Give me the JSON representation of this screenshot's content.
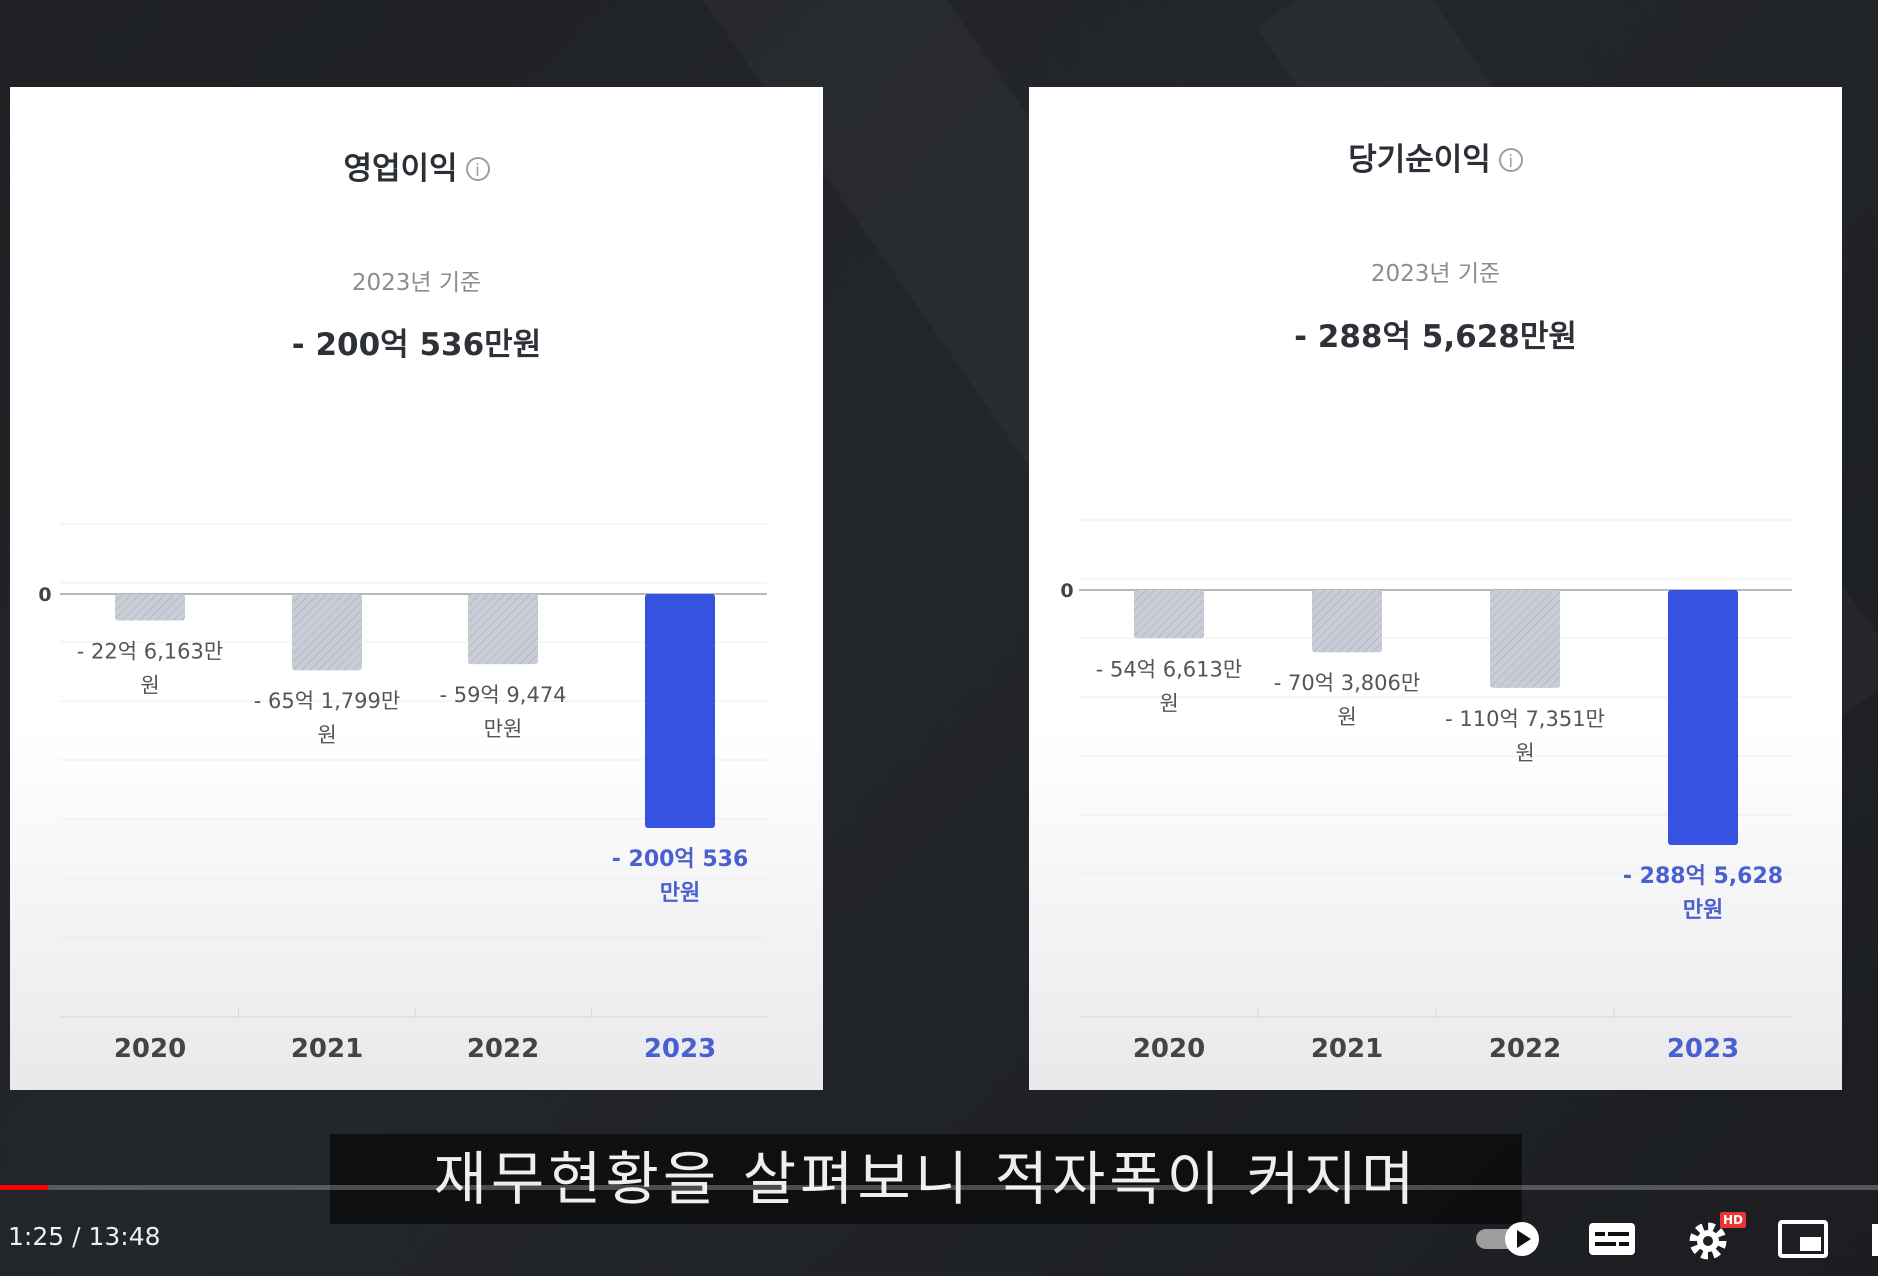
{
  "left_card": {
    "title": "영업이익",
    "info_icon": "i",
    "subtitle": "2023년 기준",
    "total": "- 200억 536만원"
  },
  "right_card": {
    "title": "당기순이익",
    "info_icon": "i",
    "subtitle": "2023년 기준",
    "total": "- 288억 5,628만원"
  },
  "chart_data": [
    {
      "type": "bar",
      "title": "영업이익",
      "subtitle": "2023년 기준",
      "categories": [
        "2020",
        "2021",
        "2022",
        "2023"
      ],
      "values": [
        -22.6163,
        -65.1799,
        -59.9474,
        -200.0536
      ],
      "unit": "억원",
      "value_labels": [
        [
          "- 22억 6,163만",
          "원"
        ],
        [
          "- 65억 1,799만",
          "원"
        ],
        [
          "- 59억 9,474",
          "만원"
        ],
        [
          "- 200억 536",
          "만원"
        ]
      ],
      "y_tick_label": "0",
      "highlight": "2023",
      "colors": {
        "normal": "#c9cdd6",
        "highlight": "#3553e0",
        "highlight_label": "#4a5fd0"
      },
      "ylim": [
        -300,
        100
      ]
    },
    {
      "type": "bar",
      "title": "당기순이익",
      "subtitle": "2023년 기준",
      "categories": [
        "2020",
        "2021",
        "2022",
        "2023"
      ],
      "values": [
        -54.6613,
        -70.3806,
        -110.7351,
        -288.5628
      ],
      "unit": "억원",
      "value_labels": [
        [
          "- 54억 6,613만",
          "원"
        ],
        [
          "- 70억 3,806만",
          "원"
        ],
        [
          "- 110억 7,351만",
          "원"
        ],
        [
          "- 288억 5,628",
          "만원"
        ]
      ],
      "y_tick_label": "0",
      "highlight": "2023",
      "colors": {
        "normal": "#c9cdd6",
        "highlight": "#3553e0",
        "highlight_label": "#4a5fd0"
      },
      "ylim": [
        -400,
        100
      ]
    }
  ],
  "subtitle_caption": "재무현황을 살펴보니 적자폭이 커지며",
  "player": {
    "time": "1:25 / 13:48",
    "progress_fraction": 0.103,
    "hd_badge": "HD",
    "icons": [
      "autoplay-toggle-icon",
      "captions-icon",
      "settings-icon",
      "miniplayer-icon"
    ]
  }
}
